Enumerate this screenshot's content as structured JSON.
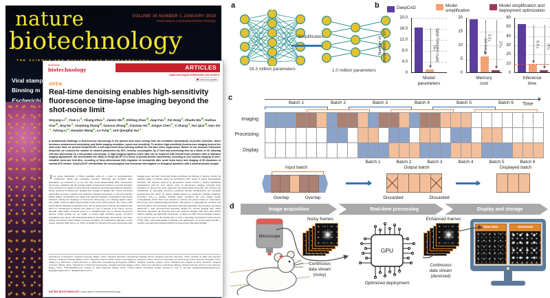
{
  "journal_cover": {
    "title_line1": "nature",
    "title_line2": "biotechnology",
    "issue_info": "VOLUME 36 NUMBER 1 JANUARY 2018",
    "website": "www.nature.com/naturebiotechnology",
    "tagline": "THE SCIENCE AND BUSINESS OF BIOTECHNOLOGY",
    "teasers": [
      "Viral stamp",
      "Binning m",
      "Escherichi"
    ]
  },
  "article": {
    "logo_line1": "nature",
    "logo_line2": "biotechnology",
    "section_label": "ARTICLES",
    "doi": "https://doi.org/10.1038/s41587-022-01450-8",
    "check_updates": "Check for updates",
    "open_label": "OPEN",
    "title": "Real-time denoising enables high-sensitivity fluorescence time-lapse imaging beyond the shot-noise limit",
    "authors": [
      "Xinyang Li",
      "Yixin Li",
      "Yiliang Zhou",
      "Jiamin Wu",
      "Zhifeng Zhao",
      "Jiaqi Fan",
      "Fei Deng",
      "Zhaofa Wu",
      "Guihua Xiao",
      "Jing He",
      "Yuanlong Zhang",
      "Guoxun Zhang",
      "Xiaowan Hu",
      "Xingye Chen",
      "Yi Zhang",
      "Hui Qiao",
      "Hao Xie",
      "Yulong Li",
      "Haoqian Wang",
      "Lu Fang",
      "Qionghai Dai"
    ],
    "abstract": "A fundamental challenge in fluorescence microscopy is the photon shot noise arising from the inevitable stochasticity of photon detection. Noise increases measurement uncertainty and limits imaging resolution, speed and sensitivity. To achieve high-sensitivity fluorescence imaging beyond the shot-noise limit, we present DeepCAD-RT, a self-supervised deep learning method for real-time noise suppression. Based on our previous framework DeepCAD, we reduced the number of network parameters by 94%, memory consumption by 27-fold and processing time by a factor of 20, allowing real-time processing on a two-photon microscope. A high imaging signal-to-noise ratio can be acquired with tenfold fewer photons than in standard imaging approaches. We demonstrate the utility of DeepCAD-RT in a series of photon-limited experiments, including in vivo calcium imaging of mice, zebrafish larva and fruit flies, recording of three-dimensional (3D) migration of neutrophils after acute brain injury and imaging of 3D dynamics of cortical ATP release. DeepCAD-RT will facilitate the morphological and functional interrogation of biological dynamics with a minimal photon budget.",
    "body": "The proper functioning of living organisms relies on a series of spatiotemporally orchestrated cellular and subcellular activities. Observing and recording these phenomena are considered to be the first step toward understanding them. Fluorescence microscopy, combined with the growing palette of fluorescent indicators, provides biologists with a practical tool capable of good molecular specificity and high spatiotemporal resolution. Recent advances in fluorescence imaging have brought us insights into various previously inaccessible processes, ranging from molecular organelle interactions to pan-cell footprints during embryo development and whole-brain neuronal dynamics synchronized with certain behaviors. Among the challenges of fluorescence microscopy, poor imaging signal-to-noise ratio (SNR) caused by limited photon budget stands in the central position. The causes of this photon-limited challenge are manifold. First, the low photon yield of fluorescent indicators and their low concentration in labeled cells result in a lack of photons at the source. Second, although using higher excitation power is a straightforward way to increase fluorescent photons, living systems are too fragile to tolerate high excitation dosage. Extensive experiments have shown that illumination-induced photobleaching, phototoxicity and tissue heating will disturb crucial cellular processes, including cell proliferation, migration, vesicle release, neuronal firing and so on. Third, recording fast biological processes necessitates high imaging speed, and short dwell time further exacerbates the shortage of photons. Fourth, the quantum nature of photons makes the stochasticity (shot noise) of optical measurements inevitable. The intensity detected by photoelectric sensors follows a Poisson distribution parameterized with the exact photon count. In fluorescence imaging, detection noise dominated by photon shot noise aggravates the measurement uncertainty and obstructs the visualization of underlying structures, potentially altering morphological and functional interpretations that follow. To capture enough photons for satisfactory imaging sensitivity, researchers have to sacrifice imaging speed, resolution and even sample health. Comprehensive efforts have been invested to increase the photon budget of fluorescence microscopy, from designing high-performance fluorophores to upgrading the excitation and detection physics and developing data-driven denoising algorithms. We previously developed DeepCAD, a deep self-supervised denoising method for calcium imaging data, which effectively suppresses the detection noise and improves imaging SNR more than tenfold without requiring any high-SNR observations. A single low-SNR calcium imaging sequence can be directly used as the training data to train a denoising convolutional neural network (CNN). Here, with advancements in methods and applications, we present DeepCAD-RT, a versatile self-supervised denoising method for fluorescence time-lapse imaging.",
    "affiliations": "¹Department of Automation, Tsinghua University, Beijing, China. ²Tsinghua Shenzhen International Graduate School, Tsinghua University, Shenzhen, China. ³Institute for Brain and Cognitive Sciences, Tsinghua University, Beijing, China. ⁴Hangzhou Zhuoxi Institute of Brain and Intelligence, Hangzhou, China. ⁵School of Information and Technology, Fudan University, Shanghai, China. ⁶Beijing Key Laboratory of Multi-dimension & Multi-scale Computational Photography (MMCP), Tsinghua University, Beijing, China. ⁷IDG/McGovern Institute for Brain Research, Tsinghua University, Beijing, China. ⁸Department of Electronic Engineering, Tsinghua University, Beijing, China. ⁹State Key Laboratory of Membrane Biology, Peking University School of Life Sciences, Beijing, China. ¹⁰PKU-IDG/McGovern Institute for Brain Research, Beijing, China. ¹⁶These authors contributed equally: Xinyang Li, Yixin Li. ✉e-mail: wanghaoqian@tsinghua.edu.cn; fanglu@tsinghua.edu.cn; qhdai@tsinghua.edu.cn",
    "footer_journal": "NATURE BIOTECHNOLOGY",
    "footer_url": " | www.nature.com/naturebiotechnology"
  },
  "figure": {
    "panel_a": {
      "label": "a",
      "simplification_label": "Simplification",
      "dense_caption": "16.3 million parameters",
      "sparse_caption": "1.0 million parameters"
    },
    "panel_b": {
      "label": "b",
      "legend": [
        {
          "label": "DeepCAD",
          "color": "#5a3d9e"
        },
        {
          "label": "Model\nsimplification",
          "color": "#f2a173"
        },
        {
          "label": "Model simplification and\ndeployment optimization",
          "color": "#9c3a56"
        }
      ],
      "bar_colors": [
        "#5a3d9e",
        "#f2a173",
        "#9c3a56"
      ]
    },
    "panel_c": {
      "label": "c",
      "time_label": "Time",
      "row_labels": [
        "Imaging",
        "Processing",
        "Display"
      ],
      "batch_labels_top": [
        "Batch 1",
        "Batch 2",
        "Batch 3",
        "Batch 4",
        "Batch 5",
        "Batch 6"
      ],
      "batch_labels_bottom": [
        "Batch 1",
        "Batch 2",
        "Batch 3",
        "Batch 4",
        "Batch 5",
        "Batch 6"
      ],
      "grid": {
        "imaging": [
          "b",
          "b",
          "b",
          "v",
          "v",
          "o",
          "b",
          "v",
          "v",
          "o",
          "b",
          "v",
          "v",
          "o",
          "b",
          "v",
          "v",
          "o",
          "o",
          "o",
          "w",
          "w",
          "w",
          "w",
          "w",
          "w",
          "w"
        ],
        "processing": [
          "w",
          "w",
          "w",
          "w",
          "w",
          "w",
          "b",
          "b",
          "w",
          "o",
          "o",
          "w",
          "b",
          "b",
          "w",
          "o",
          "o",
          "w",
          "b",
          "b",
          "w",
          "o",
          "o",
          "w",
          "w",
          "w",
          "w"
        ],
        "display": [
          "w",
          "w",
          "w",
          "w",
          "w",
          "w",
          "w",
          "w",
          "w",
          "b",
          "b",
          "b",
          "o",
          "o",
          "o",
          "b",
          "b",
          "b",
          "o",
          "o",
          "o",
          "b",
          "b",
          "b",
          "o",
          "o",
          "o"
        ]
      },
      "cell_colors": {
        "b": "#8ba3c9",
        "o": "#f3bf9b",
        "v": "#aa8173",
        "w": "#ffffff"
      },
      "input_batch_label": "Input batch",
      "overlap_label": "Overlap",
      "output_batch_label": "Output batch",
      "discarded_label": "Discarded",
      "displayed_batch_label": "Displayed batch"
    },
    "panel_d": {
      "label": "d",
      "stages": [
        "Image acquisition",
        "Real-time processing",
        "Display and storage"
      ],
      "microscope_label": "Microscope",
      "noisy_frames_label": "Noisy frames",
      "stream_noisy": "Continuous\ndata stream\n(noisy)",
      "gpu_label": "GPU",
      "optimized_label": "Optimized deployment",
      "enhanced_frames_label": "Enhanced frames",
      "stream_denoised": "Continuous\ndata stream\n(denoised)",
      "raw_data_label": "Raw data",
      "denoised_label": "Denoised"
    }
  },
  "chart_data": [
    {
      "type": "bar",
      "title": "Model\nparameters",
      "ylabel": "Number of\nparameters (×10⁶)",
      "ylim": [
        0,
        20
      ],
      "yticks": [
        "0",
        "4.0",
        "8.0",
        "12.0",
        "16.0",
        "20.0"
      ],
      "categories": [
        "DeepCAD",
        "Model simplification"
      ],
      "values": [
        16.3,
        1.0
      ],
      "annotations": [
        "16×"
      ],
      "grid": "dashed-horizontal",
      "legend_position": "top"
    },
    {
      "type": "bar",
      "title": "Memory\ncost",
      "ylabel": "GPU memory (GB)",
      "ylim": [
        0,
        20
      ],
      "yticks": [
        "0",
        "5",
        "10",
        "15",
        "20"
      ],
      "categories": [
        "DeepCAD",
        "Model simplification",
        "Model simplification and deployment optimization"
      ],
      "values": [
        19.2,
        5.8,
        0.7
      ],
      "annotations": [
        "3.3×",
        "27×"
      ],
      "grid": "dashed-horizontal",
      "legend_position": "top"
    },
    {
      "type": "bar",
      "title": "Inference\ntime",
      "ylabel": "Time (s)",
      "ylim": [
        0,
        60
      ],
      "yticks": [
        "0",
        "10",
        "20",
        "30",
        "40",
        "50",
        "60"
      ],
      "categories": [
        "DeepCAD",
        "Model simplification",
        "Model simplification and deployment optimization"
      ],
      "values": [
        52.5,
        8.0,
        2.6
      ],
      "annotations": [
        "6.6×",
        "20×"
      ],
      "reference_line": 10,
      "grid": "dashed-horizontal",
      "legend_position": "top"
    }
  ]
}
